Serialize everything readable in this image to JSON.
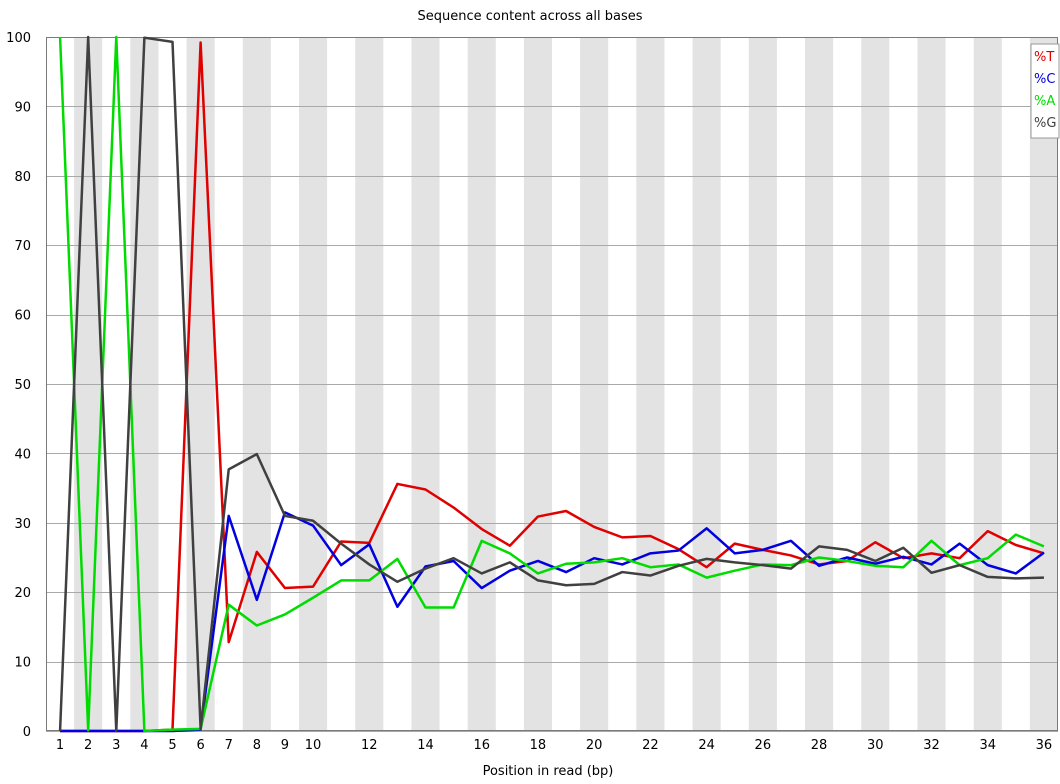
{
  "chart_data": {
    "type": "line",
    "title": "Sequence content across all bases",
    "xlabel": "Position in read (bp)",
    "ylabel": "",
    "ylim": [
      0,
      100
    ],
    "yticks": [
      0,
      10,
      20,
      30,
      40,
      50,
      60,
      70,
      80,
      90,
      100
    ],
    "x": [
      1,
      2,
      3,
      4,
      5,
      6,
      7,
      8,
      9,
      10,
      11,
      12,
      13,
      14,
      15,
      16,
      17,
      18,
      19,
      20,
      21,
      22,
      23,
      24,
      25,
      26,
      27,
      28,
      29,
      30,
      31,
      32,
      33,
      34,
      35,
      36
    ],
    "xtick_labels": [
      "1",
      "2",
      "3",
      "4",
      "5",
      "6",
      "7",
      "8",
      "9",
      "10",
      "12",
      "14",
      "16",
      "18",
      "20",
      "22",
      "24",
      "26",
      "28",
      "30",
      "32",
      "34",
      "36"
    ],
    "xtick_positions": [
      1,
      2,
      3,
      4,
      5,
      6,
      7,
      8,
      9,
      10,
      12,
      14,
      16,
      18,
      20,
      22,
      24,
      26,
      28,
      30,
      32,
      34,
      36
    ],
    "grid": true,
    "legend_position": "top-right",
    "series": [
      {
        "name": "%T",
        "color": "#e00000",
        "values": [
          0,
          0,
          0,
          0,
          0.2,
          99.2,
          12.8,
          25.8,
          20.6,
          20.8,
          27.3,
          27.1,
          35.6,
          34.8,
          32.2,
          29.1,
          26.7,
          30.9,
          31.7,
          29.4,
          27.9,
          28.1,
          26.2,
          23.6,
          27.0,
          26.1,
          25.3,
          24.0,
          24.5,
          27.2,
          24.9,
          25.6,
          24.9,
          28.8,
          26.8,
          25.6
        ]
      },
      {
        "name": "%C",
        "color": "#0000e0",
        "values": [
          0,
          0,
          0,
          0,
          0,
          0.2,
          31.0,
          18.9,
          31.5,
          29.6,
          23.9,
          26.9,
          17.9,
          23.7,
          24.5,
          20.6,
          23.1,
          24.5,
          22.9,
          24.9,
          24.0,
          25.6,
          26.0,
          29.2,
          25.6,
          26.1,
          27.4,
          23.8,
          25.0,
          24.1,
          25.1,
          24.0,
          27.0,
          23.9,
          22.7,
          25.7
        ]
      },
      {
        "name": "%A",
        "color": "#00dc00",
        "values": [
          100,
          0.1,
          100,
          0,
          0.2,
          0.3,
          18.2,
          15.2,
          16.8,
          19.2,
          21.7,
          21.7,
          24.8,
          17.8,
          17.8,
          27.4,
          25.6,
          22.7,
          24.1,
          24.3,
          24.9,
          23.6,
          24.0,
          22.1,
          23.1,
          24.0,
          23.9,
          25.0,
          24.5,
          23.8,
          23.6,
          27.4,
          23.9,
          24.9,
          28.3,
          26.6
        ]
      },
      {
        "name": "%G",
        "color": "#404040",
        "values": [
          0,
          100,
          0,
          99.9,
          99.3,
          0.3,
          37.7,
          39.9,
          31.0,
          30.3,
          27.0,
          24.0,
          21.5,
          23.4,
          24.9,
          22.7,
          24.3,
          21.7,
          21.0,
          21.2,
          22.9,
          22.4,
          23.8,
          24.8,
          24.3,
          23.9,
          23.4,
          26.6,
          26.1,
          24.5,
          26.4,
          22.8,
          23.9,
          22.2,
          22.0,
          22.1
        ]
      }
    ]
  }
}
